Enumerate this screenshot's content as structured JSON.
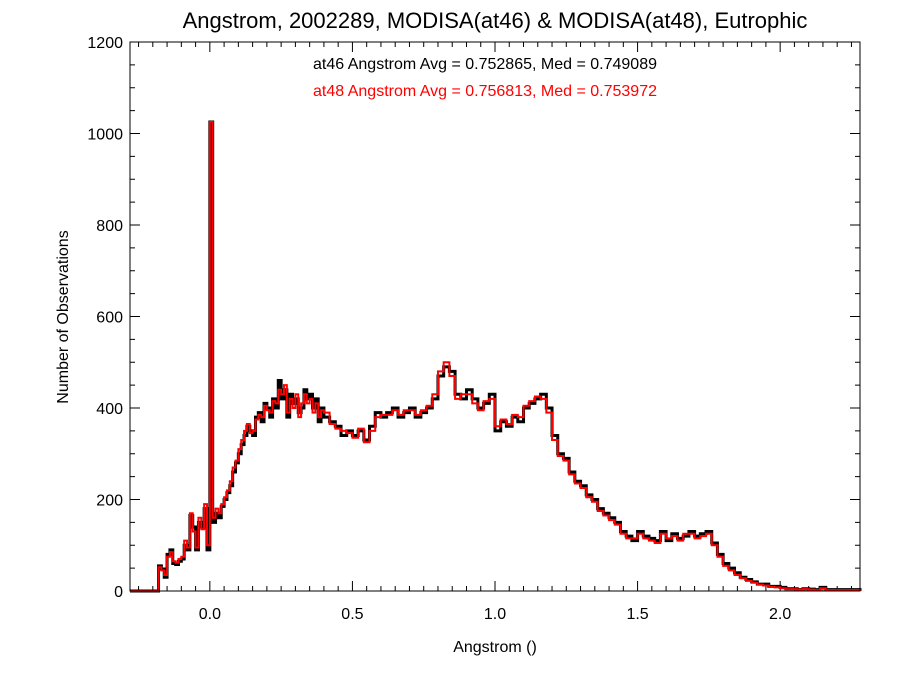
{
  "chart_data": {
    "type": "line",
    "title": "Angstrom, 2002289, MODISA(at46) & MODISA(at48), Eutrophic",
    "xlabel": "Angstrom ()",
    "ylabel": "Number of Observations",
    "xlim": [
      -0.28,
      2.28
    ],
    "ylim": [
      0,
      1200
    ],
    "xticks": [
      0.0,
      0.5,
      1.0,
      1.5,
      2.0
    ],
    "xtick_labels": [
      "0.0",
      "0.5",
      "1.0",
      "1.5",
      "2.0"
    ],
    "yticks": [
      0,
      200,
      400,
      600,
      800,
      1000,
      1200
    ],
    "ytick_labels": [
      "0",
      "200",
      "400",
      "600",
      "800",
      "1000",
      "1200"
    ],
    "grid": false,
    "annotations": [
      {
        "text": "at46 Angstrom Avg = 0.752865, Med = 0.749089",
        "color": "#000000"
      },
      {
        "text": "at48 Angstrom Avg = 0.756813, Med = 0.753972",
        "color": "#ff0000"
      }
    ],
    "series": [
      {
        "color": "#000000",
        "x": [
          -0.28,
          -0.18,
          -0.17,
          -0.16,
          -0.15,
          -0.14,
          -0.13,
          -0.12,
          -0.11,
          -0.1,
          -0.09,
          -0.08,
          -0.07,
          -0.06,
          -0.05,
          -0.04,
          -0.03,
          -0.02,
          -0.01,
          0.0,
          0.01,
          0.02,
          0.03,
          0.04,
          0.05,
          0.06,
          0.07,
          0.08,
          0.09,
          0.1,
          0.11,
          0.12,
          0.13,
          0.14,
          0.15,
          0.16,
          0.17,
          0.18,
          0.19,
          0.2,
          0.21,
          0.22,
          0.23,
          0.24,
          0.25,
          0.26,
          0.27,
          0.28,
          0.29,
          0.3,
          0.31,
          0.32,
          0.33,
          0.34,
          0.35,
          0.36,
          0.37,
          0.38,
          0.39,
          0.4,
          0.42,
          0.44,
          0.46,
          0.48,
          0.5,
          0.52,
          0.54,
          0.56,
          0.58,
          0.6,
          0.62,
          0.64,
          0.66,
          0.68,
          0.7,
          0.72,
          0.74,
          0.76,
          0.78,
          0.8,
          0.82,
          0.84,
          0.86,
          0.88,
          0.9,
          0.92,
          0.94,
          0.96,
          0.98,
          1.0,
          1.02,
          1.04,
          1.06,
          1.08,
          1.1,
          1.12,
          1.14,
          1.16,
          1.18,
          1.2,
          1.22,
          1.24,
          1.26,
          1.28,
          1.3,
          1.32,
          1.34,
          1.36,
          1.38,
          1.4,
          1.42,
          1.44,
          1.46,
          1.48,
          1.5,
          1.52,
          1.54,
          1.56,
          1.58,
          1.6,
          1.62,
          1.64,
          1.66,
          1.68,
          1.7,
          1.72,
          1.74,
          1.76,
          1.78,
          1.8,
          1.82,
          1.84,
          1.86,
          1.88,
          1.9,
          1.92,
          1.94,
          1.96,
          1.98,
          2.0,
          2.02,
          2.04,
          2.06,
          2.08,
          2.1,
          2.12,
          2.14,
          2.16,
          2.28
        ],
        "y": [
          0,
          55,
          48,
          30,
          80,
          90,
          60,
          58,
          65,
          70,
          100,
          90,
          165,
          140,
          90,
          150,
          140,
          180,
          90,
          1025,
          150,
          170,
          160,
          185,
          200,
          215,
          230,
          260,
          280,
          300,
          320,
          340,
          360,
          350,
          340,
          380,
          390,
          370,
          410,
          400,
          380,
          420,
          400,
          460,
          420,
          440,
          380,
          430,
          410,
          420,
          390,
          400,
          440,
          420,
          430,
          400,
          420,
          370,
          400,
          380,
          370,
          360,
          340,
          350,
          340,
          350,
          330,
          360,
          390,
          380,
          390,
          400,
          380,
          390,
          400,
          380,
          390,
          400,
          420,
          470,
          490,
          480,
          430,
          420,
          440,
          420,
          400,
          410,
          430,
          350,
          370,
          360,
          380,
          370,
          400,
          410,
          420,
          430,
          400,
          340,
          300,
          290,
          260,
          240,
          230,
          210,
          200,
          180,
          170,
          160,
          150,
          130,
          120,
          110,
          130,
          120,
          115,
          110,
          130,
          110,
          125,
          115,
          120,
          130,
          120,
          125,
          130,
          105,
          80,
          60,
          50,
          40,
          30,
          25,
          20,
          15,
          15,
          10,
          10,
          8,
          5,
          5,
          3,
          5,
          4,
          3,
          8,
          3,
          0
        ]
      },
      {
        "color": "#ff0000",
        "x": [
          -0.28,
          -0.18,
          -0.17,
          -0.16,
          -0.15,
          -0.14,
          -0.13,
          -0.12,
          -0.11,
          -0.1,
          -0.09,
          -0.08,
          -0.07,
          -0.06,
          -0.05,
          -0.04,
          -0.03,
          -0.02,
          -0.01,
          0.0,
          0.01,
          0.02,
          0.03,
          0.04,
          0.05,
          0.06,
          0.07,
          0.08,
          0.09,
          0.1,
          0.11,
          0.12,
          0.13,
          0.14,
          0.15,
          0.16,
          0.17,
          0.18,
          0.19,
          0.2,
          0.21,
          0.22,
          0.23,
          0.24,
          0.25,
          0.26,
          0.27,
          0.28,
          0.29,
          0.3,
          0.31,
          0.32,
          0.33,
          0.34,
          0.35,
          0.36,
          0.37,
          0.38,
          0.39,
          0.4,
          0.42,
          0.44,
          0.46,
          0.48,
          0.5,
          0.52,
          0.54,
          0.56,
          0.58,
          0.6,
          0.62,
          0.64,
          0.66,
          0.68,
          0.7,
          0.72,
          0.74,
          0.76,
          0.78,
          0.8,
          0.82,
          0.84,
          0.86,
          0.88,
          0.9,
          0.92,
          0.94,
          0.96,
          0.98,
          1.0,
          1.02,
          1.04,
          1.06,
          1.08,
          1.1,
          1.12,
          1.14,
          1.16,
          1.18,
          1.2,
          1.22,
          1.24,
          1.26,
          1.28,
          1.3,
          1.32,
          1.34,
          1.36,
          1.38,
          1.4,
          1.42,
          1.44,
          1.46,
          1.48,
          1.5,
          1.52,
          1.54,
          1.56,
          1.58,
          1.6,
          1.62,
          1.64,
          1.66,
          1.68,
          1.7,
          1.72,
          1.74,
          1.76,
          1.78,
          1.8,
          1.82,
          1.84,
          1.86,
          1.88,
          1.9,
          1.92,
          1.94,
          1.96,
          1.98,
          2.0,
          2.02,
          2.04,
          2.06,
          2.08,
          2.1,
          2.12,
          2.14,
          2.16,
          2.28
        ],
        "y": [
          0,
          52,
          45,
          35,
          75,
          85,
          65,
          62,
          70,
          75,
          110,
          95,
          170,
          130,
          95,
          160,
          135,
          190,
          100,
          1025,
          160,
          180,
          170,
          190,
          205,
          220,
          240,
          270,
          285,
          310,
          330,
          350,
          365,
          345,
          350,
          375,
          385,
          380,
          405,
          395,
          390,
          415,
          410,
          440,
          430,
          450,
          390,
          420,
          400,
          430,
          380,
          410,
          430,
          410,
          420,
          390,
          410,
          380,
          395,
          390,
          365,
          355,
          350,
          345,
          335,
          355,
          325,
          350,
          380,
          385,
          385,
          395,
          385,
          395,
          395,
          385,
          395,
          405,
          430,
          480,
          500,
          470,
          420,
          430,
          430,
          410,
          395,
          415,
          420,
          360,
          375,
          365,
          385,
          380,
          405,
          415,
          425,
          420,
          390,
          330,
          295,
          285,
          255,
          235,
          225,
          205,
          195,
          175,
          165,
          155,
          145,
          125,
          115,
          115,
          125,
          115,
          110,
          105,
          125,
          115,
          120,
          110,
          125,
          125,
          115,
          120,
          125,
          100,
          75,
          55,
          45,
          35,
          28,
          22,
          18,
          14,
          12,
          9,
          8,
          6,
          4,
          4,
          3,
          4,
          3,
          2,
          6,
          2,
          0
        ]
      }
    ]
  }
}
